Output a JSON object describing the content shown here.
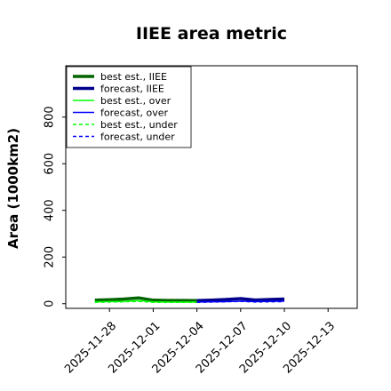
{
  "chart_data": {
    "type": "line",
    "title": "IIEE area metric",
    "xlabel": "",
    "ylabel": "Area (1000km2)",
    "ylim": [
      -20,
      1020
    ],
    "xlim": [
      "2025-11-25",
      "2025-12-15"
    ],
    "x_ticks": [
      "2025-11-28",
      "2025-12-01",
      "2025-12-04",
      "2025-12-07",
      "2025-12-10",
      "2025-12-13"
    ],
    "x_tick_colors": [
      "#000000",
      "#000000",
      "#008000",
      "#000000",
      "#000000",
      "#000000"
    ],
    "y_ticks": [
      0,
      200,
      400,
      600,
      800
    ],
    "legend_position": "top-left",
    "grid": false,
    "series": [
      {
        "name": "best est., IIEE",
        "color": "#006400",
        "style": "solid",
        "width": 3.5,
        "x": [
          "2025-11-27",
          "2025-11-28",
          "2025-11-29",
          "2025-11-30",
          "2025-12-01",
          "2025-12-02",
          "2025-12-03",
          "2025-12-04"
        ],
        "y": [
          15,
          17,
          20,
          25,
          15,
          14,
          14,
          13
        ]
      },
      {
        "name": "forecast, IIEE",
        "color": "#00008b",
        "style": "solid",
        "width": 3.5,
        "x": [
          "2025-12-04",
          "2025-12-05",
          "2025-12-06",
          "2025-12-07",
          "2025-12-08",
          "2025-12-09",
          "2025-12-10"
        ],
        "y": [
          13,
          15,
          18,
          22,
          16,
          18,
          20
        ]
      },
      {
        "name": "best est., over",
        "color": "#00ff00",
        "style": "solid",
        "width": 1.5,
        "x": [
          "2025-11-27",
          "2025-11-28",
          "2025-11-29",
          "2025-11-30",
          "2025-12-01",
          "2025-12-02",
          "2025-12-03",
          "2025-12-04"
        ],
        "y": [
          8,
          9,
          10,
          13,
          8,
          7,
          7,
          7
        ]
      },
      {
        "name": "forecast, over",
        "color": "#0000ff",
        "style": "solid",
        "width": 1.5,
        "x": [
          "2025-12-04",
          "2025-12-05",
          "2025-12-06",
          "2025-12-07",
          "2025-12-08",
          "2025-12-09",
          "2025-12-10"
        ],
        "y": [
          7,
          8,
          9,
          11,
          9,
          10,
          11
        ]
      },
      {
        "name": "best est., under",
        "color": "#00ff00",
        "style": "dashed",
        "width": 1.5,
        "x": [
          "2025-11-27",
          "2025-11-28",
          "2025-11-29",
          "2025-11-30",
          "2025-12-01",
          "2025-12-02",
          "2025-12-03",
          "2025-12-04"
        ],
        "y": [
          6,
          7,
          8,
          10,
          6,
          6,
          6,
          6
        ]
      },
      {
        "name": "forecast, under",
        "color": "#0000ff",
        "style": "dashed",
        "width": 1.5,
        "x": [
          "2025-12-04",
          "2025-12-05",
          "2025-12-06",
          "2025-12-07",
          "2025-12-08",
          "2025-12-09",
          "2025-12-10"
        ],
        "y": [
          6,
          7,
          8,
          10,
          7,
          8,
          9
        ]
      }
    ]
  }
}
